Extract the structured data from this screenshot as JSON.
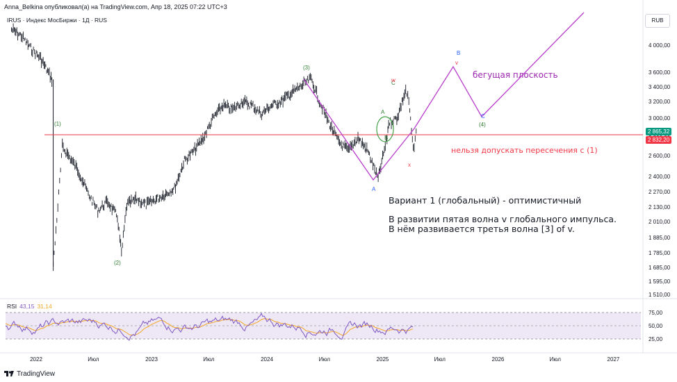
{
  "header": {
    "text": "Anna_Belkina опубликовал(а) на TradingView.com, Апр 18, 2025 07:22 UTC+3"
  },
  "symbol": {
    "text": "IRUS · Индекс МосБиржи · 1Д · RUS"
  },
  "currency": "RUB",
  "price_tags": {
    "current": "2 865,32",
    "level": "2 832,20",
    "current_color": "#089981",
    "level_color": "#f23645"
  },
  "rsi": {
    "label": "RSI",
    "value1": "43,15",
    "value2": "31,14",
    "ticks": [
      "75,00",
      "50,00",
      "25,00"
    ],
    "line_color": "#7e57c2",
    "ma_color": "#f5a623"
  },
  "footer": {
    "brand": "TradingView"
  },
  "annotations": {
    "main": "Вариант 1 (глобальный) - оптимистичный",
    "line2": "В развитии пятая волна v глобального импульса.",
    "line3": "В нём развивается третья волна [3] of v.",
    "flat": "бегущая плоскость",
    "cross": "нельзя допускать пересечения с (1)"
  },
  "waves": {
    "w1": "(1)",
    "w2": "(2)",
    "w3": "(3)",
    "w4": "(4)",
    "A_low": "A",
    "A_green": "A",
    "B_green": "B",
    "C_green": "C",
    "B_blue": "B",
    "C_blue": "C",
    "v_red": "v",
    "x_red": "x",
    "w_red": "w",
    "c_red": "C"
  },
  "chart_data": {
    "type": "line",
    "title": "IRUS · Индекс МосБиржи · 1Д · RUS",
    "xlabel": "",
    "ylabel": "",
    "x_ticks": [
      "2022",
      "Июл",
      "2023",
      "Июл",
      "2024",
      "Июл",
      "2025",
      "Июл",
      "2026",
      "Июл",
      "2027"
    ],
    "y_ticks": [
      "4 000,00",
      "3 600,00",
      "3 400,00",
      "3 200,00",
      "3 000,00",
      "2 800,00",
      "2 600,00",
      "2 400,00",
      "2 270,00",
      "2 130,00",
      "2 010,00",
      "1 885,00",
      "1 785,00",
      "1 685,00",
      "1 595,00",
      "1 510,00"
    ],
    "y_scale": "log",
    "horizontal_line": 2832.2,
    "last_price": 2865.32,
    "series": [
      {
        "values_note": "",
        "x": [
          "2021-10",
          "2021-11",
          "2021-12",
          "2022-01",
          "2022-02-20",
          "2022-02-24",
          "2022-03-25",
          "2022-05",
          "2022-06",
          "2022-07",
          "2022-08",
          "2022-09",
          "2022-09-28",
          "2022-10",
          "2022-11",
          "2022-12",
          "2023-01",
          "2023-02",
          "2023-03",
          "2023-04",
          "2023-05",
          "2023-06",
          "2023-07",
          "2023-08",
          "2023-09",
          "2023-10",
          "2023-11",
          "2023-12",
          "2024-01",
          "2024-02",
          "2024-03",
          "2024-04",
          "2024-05-20",
          "2024-06",
          "2024-07",
          "2024-08",
          "2024-09",
          "2024-10",
          "2024-11",
          "2024-12-18",
          "2025-01",
          "2025-01-20",
          "2025-02",
          "2025-02-20",
          "2025-03",
          "2025-03-25",
          "2025-04-08",
          "2025-04-17"
        ],
        "values": [
          4250,
          4150,
          3950,
          3800,
          3500,
          1690,
          2700,
          2450,
          2250,
          2100,
          2180,
          2050,
          1780,
          2150,
          2200,
          2150,
          2200,
          2250,
          2300,
          2550,
          2650,
          2800,
          3000,
          3150,
          3100,
          3200,
          3150,
          3050,
          3150,
          3200,
          3300,
          3400,
          3510,
          3200,
          2950,
          2750,
          2650,
          2800,
          2650,
          2380,
          2800,
          2950,
          3000,
          3050,
          3350,
          3200,
          2650,
          2865
        ]
      }
    ]
  }
}
